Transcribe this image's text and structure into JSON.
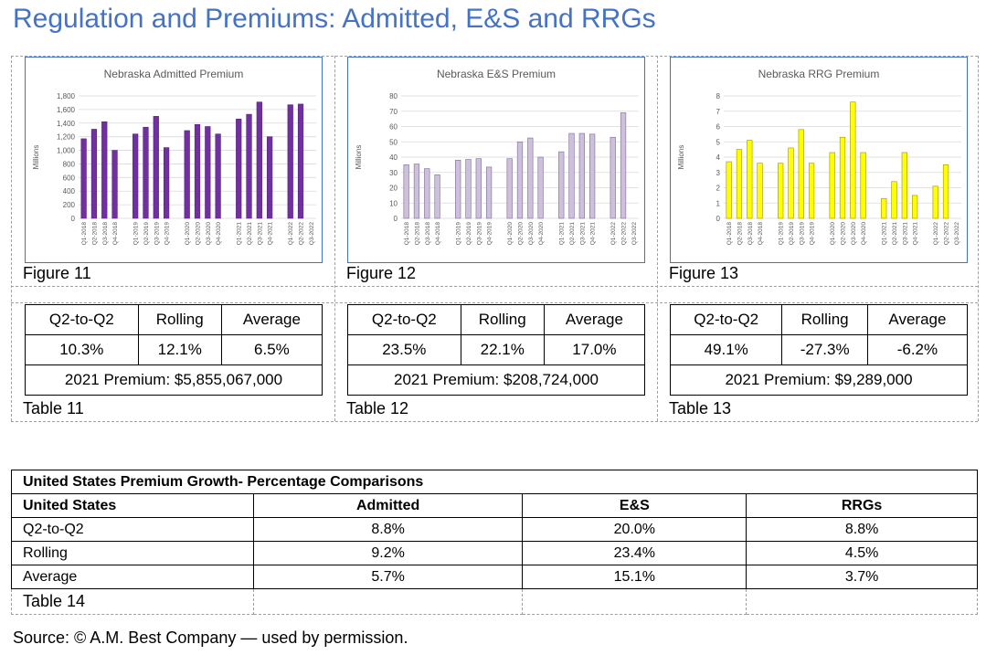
{
  "page": {
    "title": "Regulation and Premiums: Admitted, E&S and RRGs"
  },
  "captions": {
    "figure_11": "Figure 11",
    "figure_12": "Figure 12",
    "figure_13": "Figure 13",
    "table_11": "Table 11",
    "table_12": "Table 12",
    "table_13": "Table 13",
    "table_14": "Table 14"
  },
  "stat_tables": [
    {
      "headers": [
        "Q2-to-Q2",
        "Rolling",
        "Average"
      ],
      "values": [
        "10.3%",
        "12.1%",
        "6.5%"
      ],
      "premium": "2021 Premium: $5,855,067,000"
    },
    {
      "headers": [
        "Q2-to-Q2",
        "Rolling",
        "Average"
      ],
      "values": [
        "23.5%",
        "22.1%",
        "17.0%"
      ],
      "premium": "2021 Premium: $208,724,000"
    },
    {
      "headers": [
        "Q2-to-Q2",
        "Rolling",
        "Average"
      ],
      "values": [
        "49.1%",
        "-27.3%",
        "-6.2%"
      ],
      "premium": "2021 Premium: $9,289,000"
    }
  ],
  "us_table": {
    "title": "United States Premium Growth- Percentage Comparisons",
    "headers": [
      "United States",
      "Admitted",
      "E&S",
      "RRGs"
    ],
    "rows": [
      [
        "Q2-to-Q2",
        "8.8%",
        "20.0%",
        "8.8%"
      ],
      [
        "Rolling",
        "9.2%",
        "23.4%",
        "4.5%"
      ],
      [
        "Average",
        "5.7%",
        "15.1%",
        "3.7%"
      ]
    ]
  },
  "source": "Source: © A.M. Best Company — used by permission.",
  "chart_data": [
    {
      "type": "bar",
      "title": "Nebraska Admitted Premium",
      "ylabel": "Millions",
      "ylim": [
        0,
        1800
      ],
      "yticks": [
        "0",
        "200",
        "400",
        "600",
        "800",
        "1,000",
        "1,200",
        "1,400",
        "1,600",
        "1,800"
      ],
      "categories": [
        "Q1-2018",
        "Q2-2018",
        "Q3-2018",
        "Q4-2018",
        "",
        "Q1-2019",
        "Q2-2019",
        "Q3-2019",
        "Q4-2019",
        "",
        "Q1-2020",
        "Q2-2020",
        "Q3-2020",
        "Q4-2020",
        "",
        "Q1-2021",
        "Q2-2021",
        "Q3-2021",
        "Q4-2021",
        "",
        "Q1-2022",
        "Q2-2022",
        "Q3-2022"
      ],
      "values": [
        1170,
        1310,
        1420,
        1000,
        null,
        1240,
        1340,
        1500,
        1040,
        null,
        1290,
        1380,
        1350,
        1240,
        null,
        1460,
        1530,
        1710,
        1200,
        null,
        1670,
        1680,
        null
      ],
      "colors": {
        "fill": "#7030a0",
        "stroke": "#5a2480"
      },
      "grid": true
    },
    {
      "type": "bar",
      "title": "Nebraska E&S Premium",
      "ylabel": "Millions",
      "ylim": [
        0,
        80
      ],
      "yticks": [
        "0",
        "10",
        "20",
        "30",
        "40",
        "50",
        "60",
        "70",
        "80"
      ],
      "categories": [
        "Q1-2018",
        "Q2-2018",
        "Q3-2018",
        "Q4-2018",
        "",
        "Q1-2019",
        "Q2-2019",
        "Q3-2019",
        "Q4-2019",
        "",
        "Q1-2020",
        "Q2-2020",
        "Q3-2020",
        "Q4-2020",
        "",
        "Q1-2021",
        "Q2-2021",
        "Q3-2021",
        "Q4-2021",
        "",
        "Q1-2022",
        "Q2-2022",
        "Q3-2022"
      ],
      "values": [
        35,
        35.5,
        32.5,
        28.5,
        null,
        38,
        38.5,
        39,
        33.5,
        null,
        39,
        50,
        52.5,
        40,
        null,
        43.5,
        55.5,
        55.5,
        55,
        null,
        53,
        69,
        null
      ],
      "colors": {
        "fill": "#ccc0da",
        "stroke": "#7f6a9a"
      },
      "grid": true
    },
    {
      "type": "bar",
      "title": "Nebraska RRG Premium",
      "ylabel": "Millions",
      "ylim": [
        0,
        8
      ],
      "yticks": [
        "0",
        "1",
        "2",
        "3",
        "4",
        "5",
        "6",
        "7",
        "8"
      ],
      "categories": [
        "Q1-2018",
        "Q2-2018",
        "Q3-2018",
        "Q4-2018",
        "",
        "Q1-2019",
        "Q2-2019",
        "Q3-2019",
        "Q4-2019",
        "",
        "Q1-2020",
        "Q2-2020",
        "Q3-2020",
        "Q4-2020",
        "",
        "Q1-2021",
        "Q2-2021",
        "Q3-2021",
        "Q4-2021",
        "",
        "Q1-2022",
        "Q2-2022",
        "Q3-2022"
      ],
      "values": [
        3.7,
        4.5,
        5.1,
        3.6,
        null,
        3.6,
        4.6,
        5.8,
        3.6,
        null,
        4.3,
        5.3,
        7.6,
        4.3,
        null,
        1.3,
        2.4,
        4.3,
        1.5,
        null,
        2.1,
        3.5,
        null
      ],
      "colors": {
        "fill": "#ffff00",
        "stroke": "#a09000"
      },
      "grid": true
    }
  ]
}
